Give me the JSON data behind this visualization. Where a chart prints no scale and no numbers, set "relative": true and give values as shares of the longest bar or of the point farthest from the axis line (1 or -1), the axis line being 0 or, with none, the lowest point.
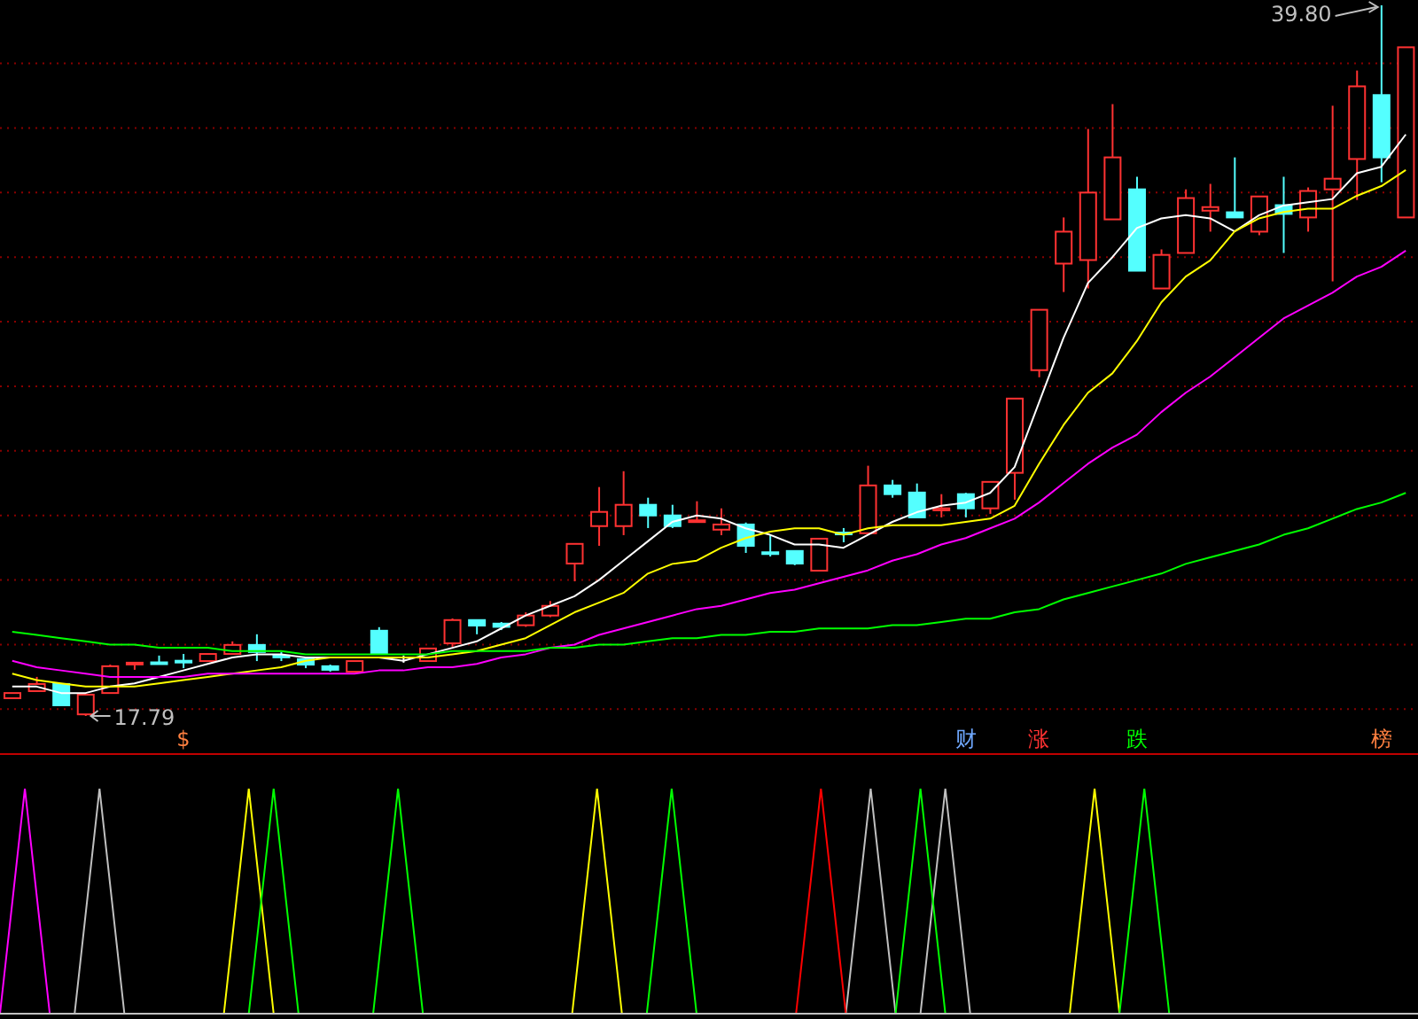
{
  "chart_data": [
    {
      "type": "candlestick",
      "categories": [
        null,
        null,
        null,
        null,
        null,
        null,
        null,
        null,
        null,
        null,
        null,
        null,
        null,
        null,
        null,
        null,
        null,
        null,
        null,
        null,
        null,
        null,
        null,
        null,
        null,
        null,
        null,
        null,
        null,
        null,
        null,
        null,
        null,
        null,
        null,
        null,
        null,
        null,
        null,
        null,
        null,
        null,
        null,
        null,
        null,
        null,
        null,
        null,
        null,
        null,
        null,
        null,
        null,
        null,
        null,
        null,
        null,
        null
      ],
      "ohlc": [
        [
          18.34,
          18.5,
          18.34,
          18.5
        ],
        [
          18.56,
          19.0,
          18.56,
          18.78
        ],
        [
          18.78,
          18.8,
          18.12,
          18.12
        ],
        [
          17.84,
          18.45,
          17.79,
          18.45
        ],
        [
          18.5,
          19.38,
          18.5,
          19.33
        ],
        [
          19.42,
          19.44,
          19.22,
          19.44
        ],
        [
          19.45,
          19.66,
          19.44,
          19.44
        ],
        [
          19.5,
          19.71,
          19.27,
          19.48
        ],
        [
          19.49,
          19.71,
          19.49,
          19.71
        ],
        [
          19.71,
          20.1,
          19.71,
          19.99
        ],
        [
          19.99,
          20.32,
          19.49,
          19.77
        ],
        [
          19.66,
          19.77,
          19.49,
          19.64
        ],
        [
          19.55,
          19.55,
          19.27,
          19.38
        ],
        [
          19.33,
          19.38,
          19.16,
          19.22
        ],
        [
          19.16,
          19.49,
          19.16,
          19.49
        ],
        [
          20.43,
          20.54,
          19.71,
          19.71
        ],
        [
          19.6,
          19.66,
          19.44,
          19.6
        ],
        [
          19.49,
          19.88,
          19.49,
          19.88
        ],
        [
          20.04,
          20.81,
          19.93,
          20.76
        ],
        [
          20.76,
          20.76,
          20.32,
          20.59
        ],
        [
          20.65,
          20.7,
          20.45,
          20.55
        ],
        [
          20.6,
          21.0,
          20.55,
          20.9
        ],
        [
          20.9,
          21.35,
          20.85,
          21.2
        ],
        [
          22.51,
          23.12,
          21.96,
          23.12
        ],
        [
          23.67,
          24.88,
          23.06,
          24.11
        ],
        [
          23.67,
          25.37,
          23.39,
          24.33
        ],
        [
          24.33,
          24.55,
          23.61,
          24.0
        ],
        [
          24.0,
          24.33,
          23.61,
          23.67
        ],
        [
          23.82,
          24.44,
          23.78,
          23.85
        ],
        [
          23.56,
          24.22,
          23.39,
          23.72
        ],
        [
          23.72,
          23.78,
          22.84,
          23.06
        ],
        [
          22.86,
          23.39,
          22.73,
          22.84
        ],
        [
          22.9,
          22.9,
          22.46,
          22.51
        ],
        [
          22.29,
          23.28,
          22.29,
          23.28
        ],
        [
          23.47,
          23.61,
          23.17,
          23.45
        ],
        [
          23.45,
          25.54,
          23.45,
          24.93
        ],
        [
          24.93,
          25.1,
          24.55,
          24.66
        ],
        [
          24.71,
          24.99,
          23.94,
          23.94
        ],
        [
          24.16,
          24.66,
          23.94,
          24.22
        ],
        [
          24.66,
          24.7,
          23.94,
          24.22
        ],
        [
          24.22,
          25.04,
          24.05,
          25.04
        ],
        [
          25.32,
          27.62,
          24.49,
          27.62
        ],
        [
          28.5,
          30.37,
          28.28,
          30.37
        ],
        [
          31.8,
          33.23,
          30.92,
          32.79
        ],
        [
          31.91,
          35.97,
          31.03,
          34.0
        ],
        [
          33.17,
          36.74,
          33.17,
          35.09
        ],
        [
          34.1,
          34.49,
          31.58,
          31.58
        ],
        [
          31.03,
          32.24,
          31.03,
          32.07
        ],
        [
          32.13,
          34.1,
          32.13,
          33.83
        ],
        [
          33.44,
          34.27,
          32.79,
          33.55
        ],
        [
          33.39,
          35.09,
          33.23,
          33.23
        ],
        [
          32.79,
          33.88,
          32.68,
          33.88
        ],
        [
          33.61,
          34.49,
          32.13,
          33.34
        ],
        [
          33.23,
          34.16,
          32.79,
          34.05
        ],
        [
          34.1,
          36.69,
          31.25,
          34.43
        ],
        [
          35.04,
          37.78,
          33.77,
          37.29
        ],
        [
          37.02,
          39.8,
          34.32,
          35.09
        ],
        [
          33.23,
          38.5,
          33.23,
          38.5
        ]
      ],
      "series": [
        {
          "type": "line",
          "color": "#ffffff",
          "values": [
            18.7,
            18.7,
            18.5,
            18.5,
            18.7,
            18.8,
            19.0,
            19.2,
            19.4,
            19.6,
            19.7,
            19.7,
            19.6,
            19.6,
            19.6,
            19.6,
            19.5,
            19.7,
            19.9,
            20.1,
            20.5,
            20.9,
            21.2,
            21.5,
            22.0,
            22.6,
            23.2,
            23.8,
            24.0,
            23.9,
            23.6,
            23.4,
            23.1,
            23.1,
            23.0,
            23.4,
            23.8,
            24.1,
            24.3,
            24.4,
            24.7,
            25.5,
            27.5,
            29.5,
            31.2,
            32.0,
            32.9,
            33.2,
            33.3,
            33.2,
            32.8,
            33.3,
            33.6,
            33.7,
            33.8,
            34.6,
            34.8,
            35.8
          ]
        },
        {
          "type": "line",
          "color": "#ffff00",
          "values": [
            19.1,
            18.9,
            18.8,
            18.7,
            18.7,
            18.7,
            18.8,
            18.9,
            19.0,
            19.1,
            19.2,
            19.3,
            19.5,
            19.6,
            19.6,
            19.6,
            19.6,
            19.6,
            19.7,
            19.8,
            20.0,
            20.2,
            20.6,
            21.0,
            21.3,
            21.6,
            22.2,
            22.5,
            22.6,
            23.0,
            23.3,
            23.5,
            23.6,
            23.6,
            23.4,
            23.6,
            23.7,
            23.7,
            23.7,
            23.8,
            23.9,
            24.3,
            25.6,
            26.8,
            27.8,
            28.4,
            29.4,
            30.6,
            31.4,
            31.9,
            32.8,
            33.2,
            33.4,
            33.5,
            33.5,
            33.9,
            34.2,
            34.7
          ]
        },
        {
          "type": "line",
          "color": "#ff00ff",
          "values": [
            19.5,
            19.3,
            19.2,
            19.1,
            19.0,
            19.0,
            19.0,
            19.0,
            19.1,
            19.1,
            19.1,
            19.1,
            19.1,
            19.1,
            19.1,
            19.2,
            19.2,
            19.3,
            19.3,
            19.4,
            19.6,
            19.7,
            19.9,
            20.0,
            20.3,
            20.5,
            20.7,
            20.9,
            21.1,
            21.2,
            21.4,
            21.6,
            21.7,
            21.9,
            22.1,
            22.3,
            22.6,
            22.8,
            23.1,
            23.3,
            23.6,
            23.9,
            24.4,
            25.0,
            25.6,
            26.1,
            26.5,
            27.2,
            27.8,
            28.3,
            28.9,
            29.5,
            30.1,
            30.5,
            30.9,
            31.4,
            31.7,
            32.2
          ]
        },
        {
          "type": "line",
          "color": "#00ff00",
          "values": [
            20.4,
            20.3,
            20.2,
            20.1,
            20.0,
            20.0,
            19.9,
            19.9,
            19.9,
            19.8,
            19.8,
            19.8,
            19.7,
            19.7,
            19.7,
            19.7,
            19.7,
            19.7,
            19.8,
            19.8,
            19.8,
            19.8,
            19.9,
            19.9,
            20.0,
            20.0,
            20.1,
            20.2,
            20.2,
            20.3,
            20.3,
            20.4,
            20.4,
            20.5,
            20.5,
            20.5,
            20.6,
            20.6,
            20.7,
            20.8,
            20.8,
            21.0,
            21.1,
            21.4,
            21.6,
            21.8,
            22.0,
            22.2,
            22.5,
            22.7,
            22.9,
            23.1,
            23.4,
            23.6,
            23.9,
            24.2,
            24.4,
            24.7
          ]
        }
      ],
      "yticks": [
        {
          "value": 18,
          "label": null
        },
        {
          "value": 20,
          "label": null
        },
        {
          "value": 22,
          "label": null
        },
        {
          "value": 24,
          "label": null
        },
        {
          "value": 26,
          "label": null
        },
        {
          "value": 28,
          "label": null
        },
        {
          "value": 30,
          "label": null
        },
        {
          "value": 32,
          "label": null
        },
        {
          "value": 34,
          "label": null
        },
        {
          "value": 36,
          "label": null
        },
        {
          "value": 38,
          "label": null
        }
      ],
      "grid": "y",
      "tick_labels": false,
      "annotations": [
        "39.80",
        "17.79",
        "$",
        "财",
        "涨",
        "跌",
        "榜"
      ]
    },
    {
      "type": "line",
      "relative": true,
      "tick_labels": false,
      "categories": [
        null,
        null,
        null,
        null,
        null,
        null,
        null,
        null,
        null,
        null,
        null,
        null,
        null,
        null,
        null,
        null,
        null,
        null,
        null,
        null,
        null,
        null,
        null,
        null,
        null,
        null,
        null,
        null,
        null,
        null,
        null,
        null,
        null,
        null,
        null,
        null,
        null,
        null,
        null,
        null,
        null,
        null,
        null,
        null,
        null,
        null,
        null,
        null,
        null,
        null,
        null,
        null,
        null,
        null,
        null,
        null,
        null,
        null
      ],
      "series": [
        {
          "color": "#ff00ff",
          "values": [
            0,
            1,
            0,
            null,
            null,
            null,
            null,
            null,
            null,
            null,
            null,
            null,
            null,
            null,
            null,
            null,
            null,
            null,
            null,
            null,
            null,
            null,
            null,
            null,
            null,
            null,
            null,
            null,
            null,
            null,
            null,
            null,
            null,
            null,
            null,
            null,
            null,
            null,
            null,
            null,
            null,
            null,
            null,
            null,
            null,
            null,
            null,
            null,
            null,
            null,
            null,
            null,
            null,
            null,
            null,
            null,
            null,
            null
          ]
        },
        {
          "color": "#c0c0c0",
          "values": [
            null,
            null,
            null,
            0,
            1,
            0,
            null,
            null,
            null,
            null,
            null,
            null,
            null,
            null,
            null,
            null,
            null,
            null,
            null,
            null,
            null,
            null,
            null,
            null,
            null,
            null,
            null,
            null,
            null,
            null,
            null,
            null,
            null,
            null,
            0,
            1,
            0,
            0,
            1,
            0,
            null,
            null,
            null,
            null,
            null,
            null,
            null,
            null,
            null,
            null,
            null,
            null,
            null,
            null,
            null,
            null,
            null,
            null
          ]
        },
        {
          "color": "#ffff00",
          "values": [
            null,
            null,
            null,
            null,
            null,
            null,
            null,
            null,
            null,
            0,
            1,
            0,
            null,
            null,
            null,
            null,
            null,
            null,
            null,
            null,
            null,
            null,
            null,
            0,
            1,
            0,
            null,
            null,
            null,
            null,
            null,
            null,
            null,
            null,
            null,
            null,
            null,
            null,
            null,
            null,
            null,
            null,
            null,
            0,
            1,
            0,
            null,
            null,
            null,
            null,
            null,
            null,
            null,
            null,
            null,
            null,
            null,
            null
          ]
        },
        {
          "color": "#00ff00",
          "values": [
            null,
            null,
            null,
            null,
            null,
            null,
            null,
            null,
            null,
            null,
            0,
            1,
            0,
            null,
            null,
            0,
            1,
            0,
            null,
            null,
            null,
            null,
            null,
            null,
            null,
            null,
            0,
            1,
            0,
            null,
            null,
            null,
            null,
            null,
            null,
            null,
            0,
            1,
            0,
            null,
            null,
            null,
            null,
            null,
            null,
            0,
            1,
            0,
            null,
            null,
            null,
            null,
            null,
            null,
            null,
            null,
            null,
            null
          ]
        },
        {
          "color": "#ff0000",
          "values": [
            null,
            null,
            null,
            null,
            null,
            null,
            null,
            null,
            null,
            null,
            null,
            null,
            null,
            null,
            null,
            null,
            null,
            null,
            null,
            null,
            null,
            null,
            null,
            null,
            null,
            null,
            null,
            null,
            null,
            null,
            null,
            null,
            0,
            1,
            0,
            null,
            null,
            null,
            null,
            null,
            null,
            null,
            null,
            null,
            null,
            null,
            null,
            null,
            null,
            null,
            null,
            null,
            null,
            null,
            null,
            null,
            null,
            null
          ]
        }
      ]
    }
  ]
}
